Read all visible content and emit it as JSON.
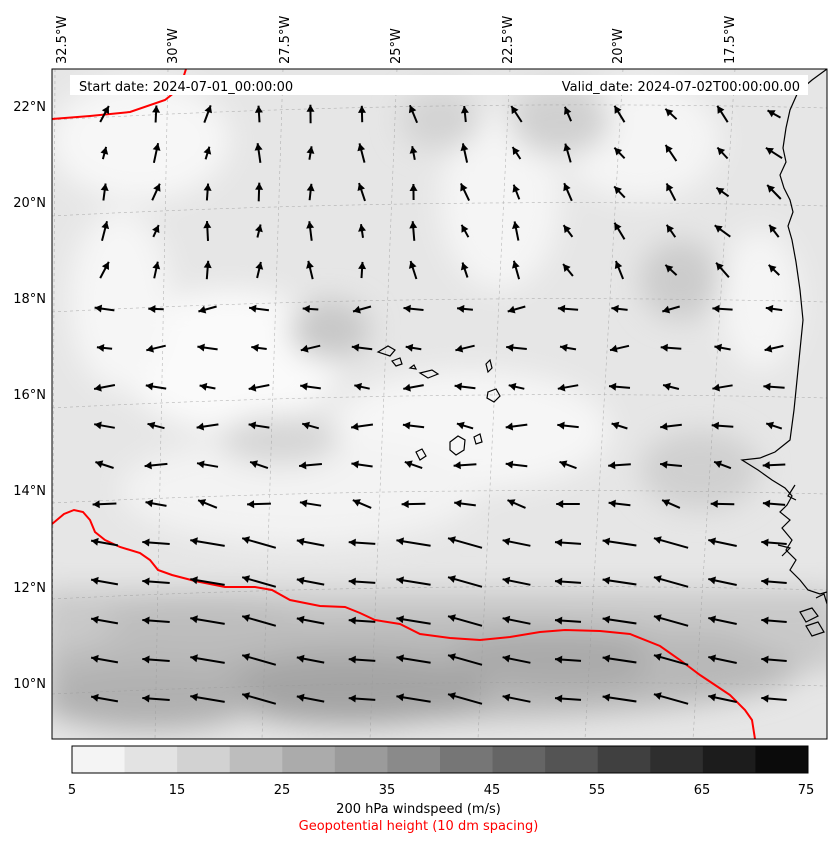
{
  "header": {
    "start_date": "Start date: 2024-07-01_00:00:00",
    "valid_date": "Valid_date: 2024-07-02T00:00:00.00"
  },
  "axes": {
    "lon_labels": [
      "32.5°W",
      "30°W",
      "27.5°W",
      "25°W",
      "22.5°W",
      "20°W",
      "17.5°W"
    ],
    "lat_labels": [
      "22°N",
      "20°N",
      "18°N",
      "16°N",
      "14°N",
      "12°N",
      "10°N"
    ]
  },
  "colorbar": {
    "ticks": [
      "5",
      "15",
      "25",
      "35",
      "45",
      "55",
      "65",
      "75"
    ],
    "colors": [
      "#f4f4f4",
      "#e3e3e3",
      "#d2d2d2",
      "#bdbdbd",
      "#ababab",
      "#9b9b9b",
      "#8a8a8a",
      "#767676",
      "#656565",
      "#545454",
      "#404040",
      "#2e2e2e",
      "#1c1c1c",
      "#0b0b0b"
    ]
  },
  "captions": {
    "windspeed": "200 hPa windspeed (m/s)",
    "geopotential": "Geopotential height (10 dm spacing)"
  },
  "colors": {
    "contour": "#ff0000",
    "arrow": "#000000",
    "coast": "#000000"
  }
}
